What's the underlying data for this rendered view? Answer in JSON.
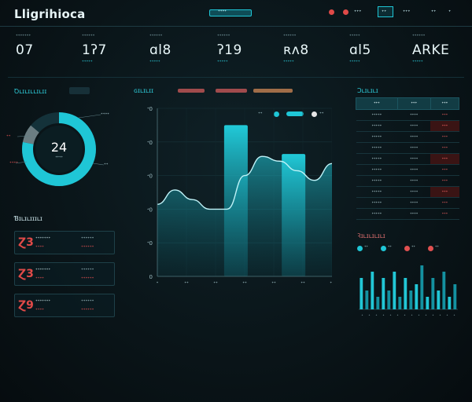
{
  "header": {
    "app_title": "Lligrihioca",
    "center_chip": "ᐩᐩᐩᐩ",
    "right_items": [
      "Ω",
      "Ω",
      "ᐩᐩᐩ",
      "ᐩᐩᐩ",
      "ᐩᐩ",
      "ᐩ"
    ],
    "right_box_label": "ᐩᐩ"
  },
  "kpis": [
    {
      "label": "ᐩᐩᐩᐩᐩᐩᐩ",
      "value": "07",
      "sub": "ᐩᐩᐩᐩᐩ"
    },
    {
      "label": "ᐩᐩᐩᐩᐩᐩ",
      "value": "1ʔ7",
      "sub": "ᐩᐩᐩᐩᐩ"
    },
    {
      "label": "ᐩᐩᐩᐩᐩᐩ",
      "value": "ɑl8",
      "sub": "ᐩᐩᐩᐩᐩ"
    },
    {
      "label": "ᐩᐩᐩᐩᐩᐩ",
      "value": "ʔ19",
      "sub": "ᐩᐩᐩᐩᐩ"
    },
    {
      "label": "ᐩᐩᐩᐩᐩᐩ",
      "value": "ʀʌ8",
      "sub": "ᐩᐩᐩᐩᐩ"
    },
    {
      "label": "ᐩᐩᐩᐩᐩ",
      "value": "ɑl5",
      "sub": "ᐩᐩᐩᐩᐩ"
    },
    {
      "label": "ᐩᐩᐩᐩᐩᐩ",
      "value": "ARKE",
      "sub": "ᐩᐩᐩᐩᐩ"
    }
  ],
  "donut": {
    "title": "Ꝺʟɪʟɪʟʟɪʟɪɪ",
    "center_value": "24",
    "center_sub": "ᐩᐩᐩᐩ",
    "fraction": 0.78,
    "callouts": [
      "ᐩᐩᐩᐩ",
      "ᐩᐩ",
      "ᐩᐩ",
      "ᐩᐩᐩᐩ"
    ]
  },
  "list": {
    "title": "Ɓɪʟɪʟɪɪɪʟɪ",
    "items": [
      {
        "icon": "Ɀ3",
        "t1": "ᐩᐩᐩᐩᐩᐩᐩ",
        "t2": "ᐩᐩᐩᐩ",
        "v1": "ᐩᐩᐩᐩᐩᐩ",
        "v2": "ᐩᐩᐩᐩᐩᐩ"
      },
      {
        "icon": "Ɀ3",
        "t1": "ᐩᐩᐩᐩᐩᐩᐩ",
        "t2": "ᐩᐩᐩᐩ",
        "v1": "ᐩᐩᐩᐩᐩᐩ",
        "v2": "ᐩᐩᐩᐩᐩᐩ"
      },
      {
        "icon": "Ɀ9",
        "t1": "ᐩᐩᐩᐩᐩᐩᐩ",
        "t2": "ᐩᐩᐩᐩ",
        "v1": "ᐩᐩᐩᐩᐩᐩ",
        "v2": "ᐩᐩᐩᐩᐩᐩ"
      }
    ]
  },
  "main_chart": {
    "title": "ɢɪʟɪʟɪɪ",
    "legend": [
      "ᐩᐩ",
      "ᐩᐩ"
    ],
    "y_ticks": [
      "0",
      "ᐩ0",
      "ᐩ0",
      "ᐩ0",
      "ᐩ0",
      "ᐩ0"
    ],
    "x_ticks": [
      "ᐩ",
      "ᐩᐩ",
      "ᐩᐩ",
      "ᐩᐩ",
      "ᐩᐩ",
      "ᐩᐩ",
      "ᐩᐩ"
    ]
  },
  "table": {
    "title": "Ɔʟɪʟɪʟɪ",
    "headers": [
      "ᐩᐩᐩ",
      "ᐩᐩᐩ",
      "ᐩᐩᐩ"
    ],
    "rows": [
      [
        "ᐩᐩᐩᐩᐩ",
        "ᐩᐩᐩᐩ",
        "ᐩᐩᐩ"
      ],
      [
        "ᐩᐩᐩᐩᐩ",
        "ᐩᐩᐩᐩ",
        "ᐩᐩᐩ"
      ],
      [
        "ᐩᐩᐩᐩᐩ",
        "ᐩᐩᐩᐩ",
        "ᐩᐩᐩ"
      ],
      [
        "ᐩᐩᐩᐩᐩ",
        "ᐩᐩᐩᐩ",
        "ᐩᐩᐩ"
      ],
      [
        "ᐩᐩᐩᐩᐩ",
        "ᐩᐩᐩᐩ",
        "ᐩᐩᐩ"
      ],
      [
        "ᐩᐩᐩᐩᐩ",
        "ᐩᐩᐩᐩ",
        "ᐩᐩᐩ"
      ],
      [
        "ᐩᐩᐩᐩᐩ",
        "ᐩᐩᐩᐩ",
        "ᐩᐩᐩ"
      ],
      [
        "ᐩᐩᐩᐩᐩ",
        "ᐩᐩᐩᐩ",
        "ᐩᐩᐩ"
      ],
      [
        "ᐩᐩᐩᐩᐩ",
        "ᐩᐩᐩᐩ",
        "ᐩᐩᐩ"
      ],
      [
        "ᐩᐩᐩᐩᐩ",
        "ᐩᐩᐩᐩ",
        "ᐩᐩᐩ"
      ]
    ]
  },
  "mini_chart": {
    "title": "Ꝛɪʟɪʟɪʟɪʟɪ",
    "legend": [
      "ᐩᐩ",
      "ᐩᐩ",
      "ᐩᐩ",
      "ᐩᐩ"
    ],
    "x_ticks": [
      "ᐩ",
      "ᐩ",
      "ᐩ",
      "ᐩ",
      "ᐩ",
      "ᐩ",
      "ᐩ",
      "ᐩ",
      "ᐩ",
      "ᐩ",
      "ᐩ",
      "ᐩ",
      "ᐩ",
      "ᐩ"
    ]
  },
  "chart_data": [
    {
      "type": "area",
      "title": "",
      "x": [
        0,
        1,
        2,
        3,
        4,
        5,
        6,
        7,
        8,
        9,
        10
      ],
      "series": [
        {
          "name": "",
          "values": [
            30,
            36,
            32,
            28,
            28,
            42,
            50,
            48,
            44,
            40,
            47
          ]
        }
      ],
      "bars": [
        {
          "x_index": 4.5,
          "value": 63
        },
        {
          "x_index": 7.8,
          "value": 51
        }
      ],
      "ylim": [
        0,
        70
      ],
      "grid": true
    },
    {
      "type": "bar",
      "title": "",
      "values": [
        5,
        3,
        6,
        2,
        5,
        3,
        6,
        2,
        5,
        3,
        4,
        7,
        2,
        5,
        3,
        6,
        2,
        4
      ],
      "ylim": [
        0,
        8
      ],
      "grid": false
    }
  ],
  "colors": {
    "accent": "#1fc6d6",
    "accent_dark": "#0f6b78",
    "negative": "#e05050",
    "background": "#0a1519"
  }
}
